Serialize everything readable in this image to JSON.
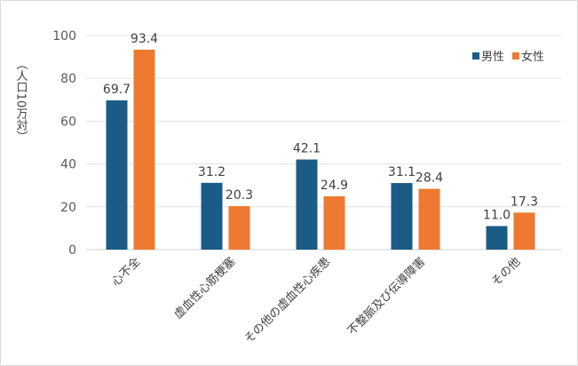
{
  "chart_data": {
    "type": "bar",
    "title": "",
    "xlabel": "",
    "ylabel": "（人口10万対）",
    "ylim": [
      0,
      100
    ],
    "yticks": [
      0,
      20,
      40,
      60,
      80,
      100
    ],
    "grid": true,
    "legend_position": "top-right",
    "categories": [
      "心不全",
      "虚血性心筋梗塞",
      "その他の虚血性心疾患",
      "不整脈及び伝導障害",
      "その他"
    ],
    "series": [
      {
        "name": "男性",
        "color": "#1a5c86",
        "values": [
          69.7,
          31.2,
          42.1,
          31.1,
          11.0
        ],
        "labels": [
          "69.7",
          "31.2",
          "42.1",
          "31.1",
          "11.0"
        ]
      },
      {
        "name": "女性",
        "color": "#ed7a30",
        "values": [
          93.4,
          20.3,
          24.9,
          28.4,
          17.3
        ],
        "labels": [
          "93.4",
          "20.3",
          "24.9",
          "28.4",
          "17.3"
        ]
      }
    ]
  }
}
